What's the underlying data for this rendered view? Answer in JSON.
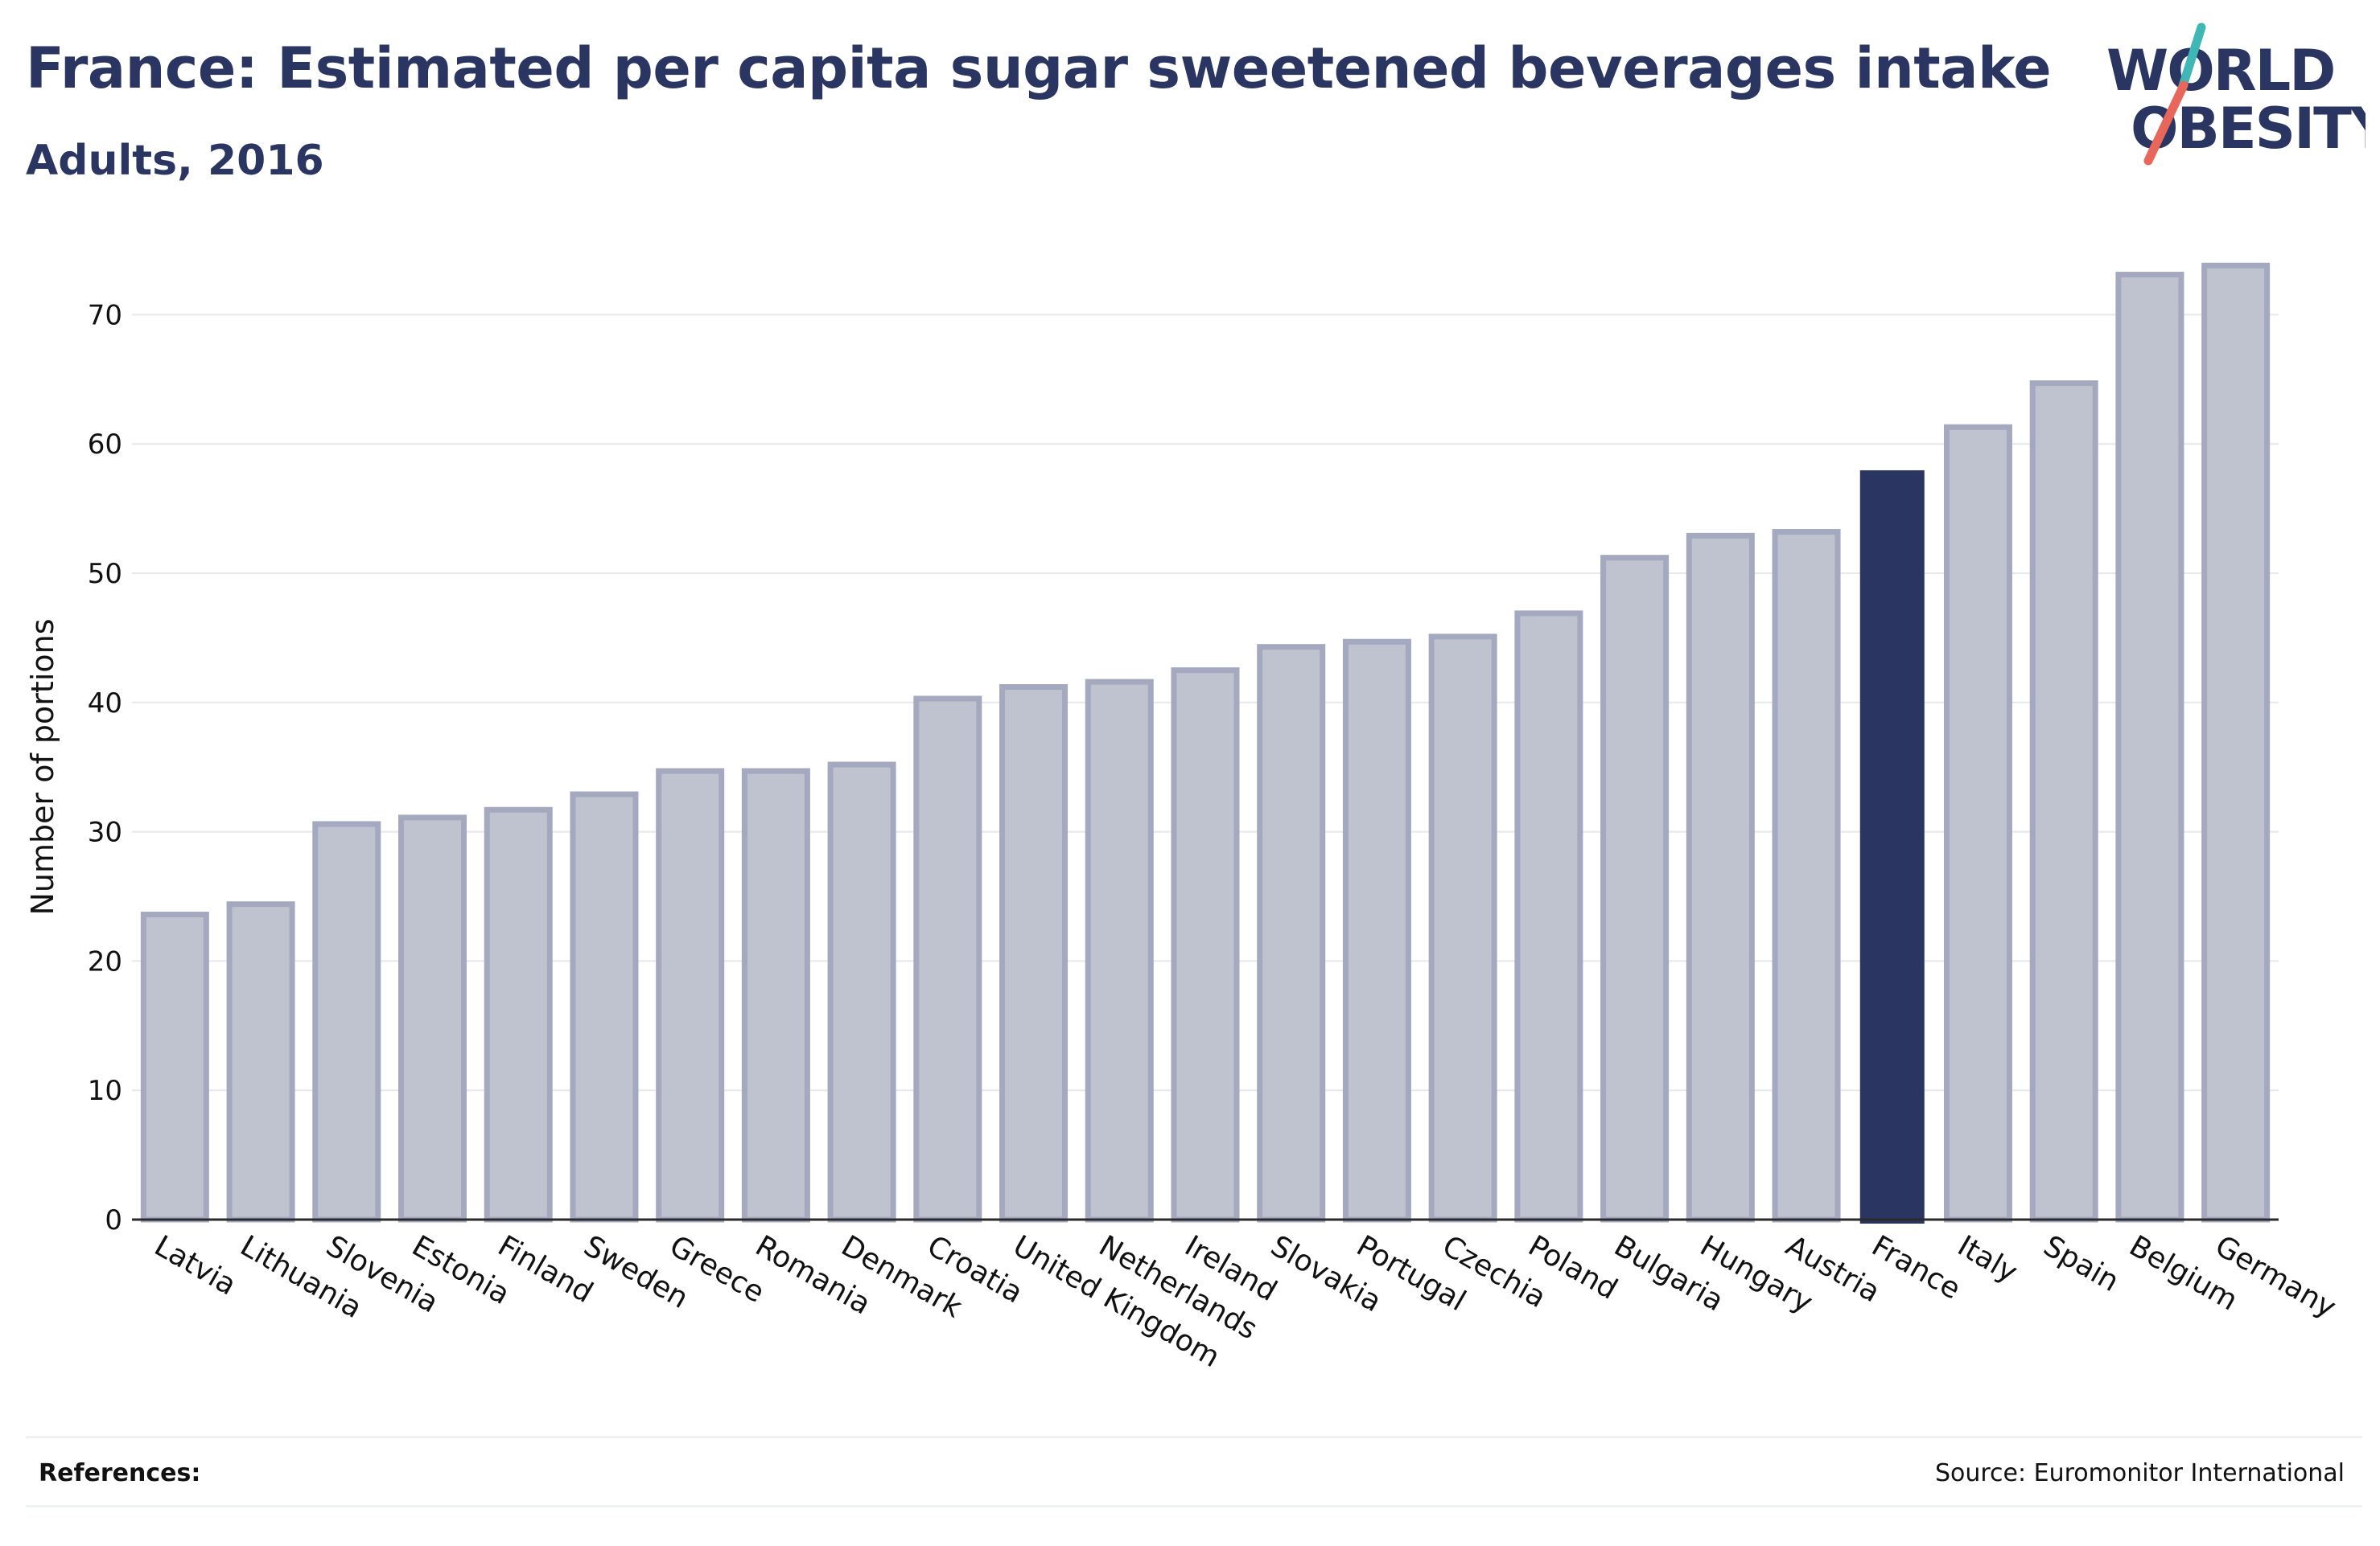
{
  "header": {
    "title": "France: Estimated per capita sugar sweetened beverages intake",
    "subtitle": "Adults, 2016"
  },
  "logo": {
    "line1": "WORLD",
    "line2": "OBESITY",
    "accent_teal": "#3fb7b5",
    "accent_red": "#e8665a"
  },
  "footer": {
    "references_label": "References:",
    "source": "Source: Euromonitor International"
  },
  "colors": {
    "bar": "#bfc2cf",
    "bar_border": "#a5a9c0",
    "highlight": "#2a3561",
    "text": "#2a3561",
    "grid": "#e6e8ee"
  },
  "chart_data": {
    "type": "bar",
    "ylabel": "Number of portions",
    "ylim": [
      0,
      75
    ],
    "yticks": [
      0,
      10,
      20,
      30,
      40,
      50,
      60,
      70
    ],
    "grid": true,
    "highlight": "France",
    "categories": [
      "Latvia",
      "Lithuania",
      "Slovenia",
      "Estonia",
      "Finland",
      "Sweden",
      "Greece",
      "Romania",
      "Denmark",
      "Croatia",
      "United Kingdom",
      "Netherlands",
      "Ireland",
      "Slovakia",
      "Portugal",
      "Czechia",
      "Poland",
      "Bulgaria",
      "Hungary",
      "Austria",
      "France",
      "Italy",
      "Spain",
      "Belgium",
      "Germany"
    ],
    "values": [
      23.6,
      24.4,
      30.6,
      31.1,
      31.7,
      32.9,
      34.7,
      34.7,
      35.2,
      40.3,
      41.2,
      41.6,
      42.5,
      44.3,
      44.7,
      45.1,
      46.9,
      51.2,
      52.9,
      53.2,
      57.9,
      61.3,
      64.7,
      73.1,
      73.8
    ]
  }
}
